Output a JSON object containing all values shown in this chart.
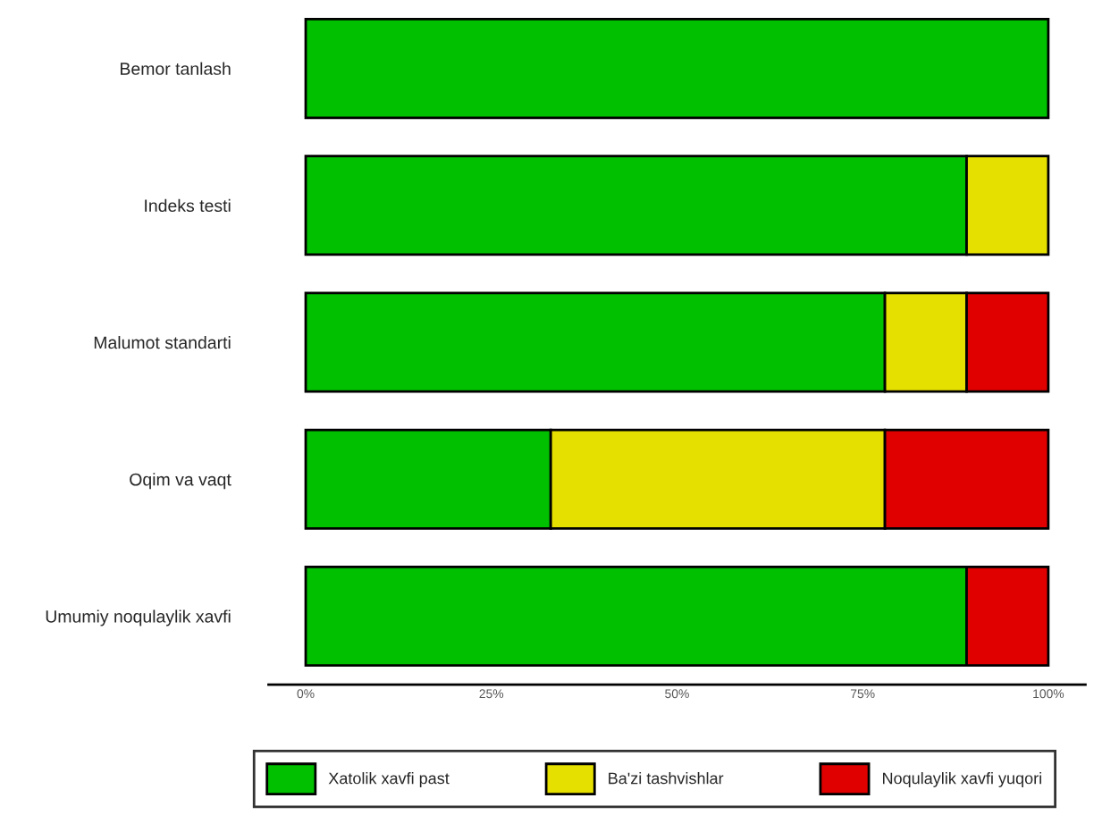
{
  "chart_data": {
    "type": "bar",
    "orientation": "horizontal",
    "stacked": true,
    "categories": [
      "Bemor tanlash",
      "Indeks testi",
      "Malumot standarti",
      "Oqim va vaqt",
      "Umumiy noqulaylik xavfi"
    ],
    "series": [
      {
        "name": "Xatolik xavfi past",
        "color": "#00c000",
        "values": [
          100,
          89,
          78,
          33,
          89
        ]
      },
      {
        "name": "Ba'zi tashvishlar",
        "color": "#e5e000",
        "values": [
          0,
          11,
          11,
          45,
          0
        ]
      },
      {
        "name": "Noqulaylik xavfi yuqori",
        "color": "#e00000",
        "values": [
          0,
          0,
          11,
          22,
          11
        ]
      }
    ],
    "xlim": [
      -5,
      105
    ],
    "xticks": [
      {
        "value": 0,
        "label": "0%"
      },
      {
        "value": 25,
        "label": "25%"
      },
      {
        "value": 50,
        "label": "50%"
      },
      {
        "value": 75,
        "label": "75%"
      },
      {
        "value": 100,
        "label": "100%"
      }
    ],
    "grid": false,
    "legend": "bottom"
  }
}
